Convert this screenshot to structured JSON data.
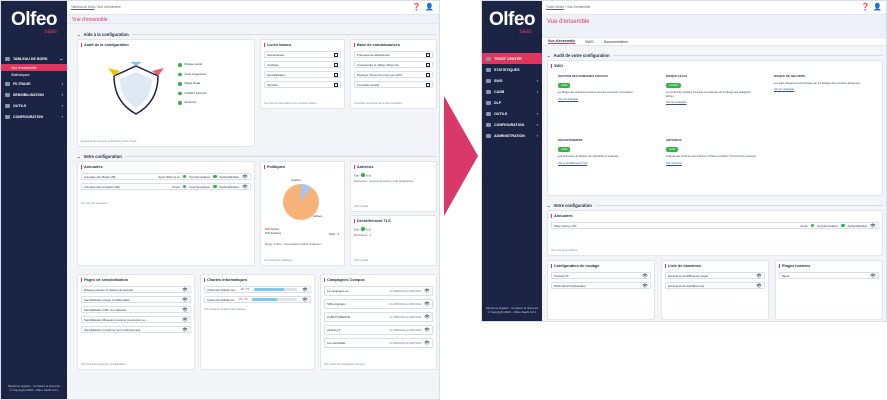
{
  "brand": {
    "logo": "Olfeo",
    "logo_sub": "saas"
  },
  "w1": {
    "crumb": "Tableau de bord",
    "crumb_tail": " / Vue d'ensemble",
    "page_title": "Vue d'ensemble",
    "nav": {
      "dashboard": "TABLEAU DE BORD",
      "overview": "Vue d'ensemble",
      "stats": "Statistiques",
      "filtrage": "FILTRAGE",
      "sensib": "SENSIBILISATION",
      "outils": "OUTILS",
      "config": "CONFIGURATION"
    },
    "footer": {
      "links": "Mentions légales · Contacts et licences",
      "copy": "© Copyright 2023 - Olfeo SaaS 0.2.1"
    },
    "aide": {
      "title": "Aide à la configuration",
      "audit": {
        "title": "Audit de la configuration",
        "items": [
          "Risque pénal",
          "Gros congestive",
          "Règle Rads",
          "CLIENT sécurité",
          "Antivirus"
        ],
        "footer": "En apprendre plus sur la démarche Trust Center"
      },
      "livres": {
        "title": "Livres blancs",
        "items": [
          "Souveraineté",
          "Juridique",
          "Sensibilisation",
          "Sécurité"
        ],
        "footer": "Voir plus de informations sur nos livres blancs"
      },
      "base": {
        "title": "Base de connaissances",
        "items": [
          "Prérequis au déploiement",
          "Comprendre et utiliser Olspot de...",
          "Déployer Olspot de proxy par GPO",
          "Consulter la FAQ"
        ],
        "footer": "Consulter l'ensemble de la documentation"
      }
    },
    "votre": {
      "title": "Votre configuration",
      "annuaires": {
        "title": "Annuaires",
        "rows": [
          {
            "name": "Annuaire site Maule (28)",
            "s1": "Apert Olfeo la ou",
            "s2": "Synchronisation",
            "s3": "Authentification"
          },
          {
            "name": "Annuaire site principal (149)",
            "s1": "Azure",
            "s2": "Synchronisation",
            "s3": "Authentification"
          }
        ],
        "footer": "Voir tous les annuaires"
      },
      "politiques": {
        "title": "Politiques",
        "label_top": "Inactive",
        "label_right": "Actives",
        "total": "Total : 4",
        "legend": [
          "Actives",
          "Inactives"
        ],
        "prop": "Règle d'office :",
        "prop_val": "Présentation blabla réalisation",
        "footer": "Voir toutes les politiques"
      },
      "antivirus": {
        "title": "Antivirus",
        "etat": "État :",
        "etat_val": "Actif",
        "exc": "Exclusions :",
        "exc_val": "Aucune exclusion n'est paramétrée",
        "footer": "Voir le détail"
      },
      "dechiff": {
        "title": "Déchiffrement TLS",
        "etat": "État :",
        "etat_val": "Actif",
        "exc": "Exclusions :",
        "exc_val": "3",
        "footer": "Voir le détail"
      }
    },
    "pages": {
      "title": "Pages de sensibilisation",
      "items": [
        "Risques pénaux et risques de sécurité",
        "Sensibilisation risque confidentialité",
        "Sensibilisation URL non classées",
        "Sensibilisation Bloqués proxisme (connexion ou ...",
        "Sensibilisation contenus non-professionnels"
      ],
      "footer": "Voir toutes les pages de sensibilisation"
    },
    "chartes": {
      "title": "Chartes informatiques",
      "items": [
        {
          "name": "Charte Ema Belle Gro...",
          "pct": "45 / 75",
          "fill": 0.7
        },
        {
          "name": "Charte Ema Belle Fil...",
          "pct": "34 / 75",
          "fill": 0.55
        }
      ],
      "footer": "Voir toutes les chartes informatiques"
    },
    "campagnes": {
      "title": "Campagnes Compus",
      "items": [
        {
          "name": "La campagne es...",
          "date": "Du 28/05/2022 au 28/07/2022"
        },
        {
          "name": "SNS migration",
          "date": "Du 28/05/2022 au 28/07/2022"
        },
        {
          "name": "CLIENT GRESOK...",
          "date": "Du 28/05/2022 au 28/07/2022"
        },
        {
          "name": "phishing 9",
          "date": "Du 28/05/2022 au 28/07/2022"
        },
        {
          "name": "Les sensibilité...",
          "date": "Du 28/05/2022 au 28/07/2022"
        }
      ],
      "footer": "Voir toutes les campagnes Compus"
    }
  },
  "w2": {
    "crumb": "Trust Center",
    "crumb_tail": " / Vue d'ensemble",
    "page_title": "Vue d'ensemble",
    "tabs": [
      "Vue d'ensemble",
      "SWG",
      "Documentation"
    ],
    "nav": {
      "trust": "TRUST CENTER",
      "stats": "STATISTIQUES",
      "swg": "SWG",
      "casb": "CASB",
      "dlp": "DLP",
      "outils": "OUTILS",
      "config": "CONFIGURATION",
      "admin": "ADMINISTRATION"
    },
    "footer": {
      "links": "Mentions légales · Contacts et licences",
      "copy": "© Copyright 2023 - Olfeo SaaS 0.2.1"
    },
    "audit": {
      "title": "Audit de votre configuration",
      "card": "SWG",
      "cols": [
        {
          "title": "GESTION DES DOMAINES SOCIAUX",
          "badge": "Actifs",
          "text": "Le filtrage des domaines sociaux sécurise vos accès numériques.",
          "link": "Voir les stratégies"
        },
        {
          "title": "RISQUE LÉGAL",
          "badge": "Couvert",
          "text": "La conformité juridique française est assurée par le filtrage des catégories illicites.",
          "link": "Voir les stratégies"
        },
        {
          "title": "RISQUE DE SÉCURITÉ",
          "badge": "",
          "text": "Les sites dangereux sont bloqués par les filtrages des contenus dangereux.",
          "link": "Voir les stratégies"
        },
        {
          "title": "DÉCHIFFREMENT",
          "badge": "Actifs",
          "text": "Les protocoles de filtrage sont déchiffrés et analysés.",
          "link": "Voir le déchiffrement TLS"
        },
        {
          "title": "ANTIVIRUS",
          "badge": "Actifs",
          "text": "Analyse des contenus par antivirus. Fichiers et fichiers TLS sont bien scannés.",
          "link": "Voir l'antivirus"
        }
      ]
    },
    "votre": {
      "title": "Votre configuration",
      "annuaires": {
        "title": "Annuaires",
        "row": {
          "name": "Olfeo interne (26)",
          "s1": "Azure",
          "s2": "Synchronisation",
          "s3": "Authentification"
        },
        "footer": "Voir tous les annuaires"
      },
      "routage": {
        "title": "Configuration de routage",
        "items": [
          "Trustset PF",
          "2021/12b-ProxyPassthru"
        ]
      },
      "domaines": {
        "title": "Liste de domaines",
        "items": [
          "Exclusions déchiffrement Apple",
          "Exclusions du déchiffrement"
        ]
      },
      "plages": {
        "title": "Plages horaires",
        "items": [
          "Week"
        ]
      }
    }
  }
}
